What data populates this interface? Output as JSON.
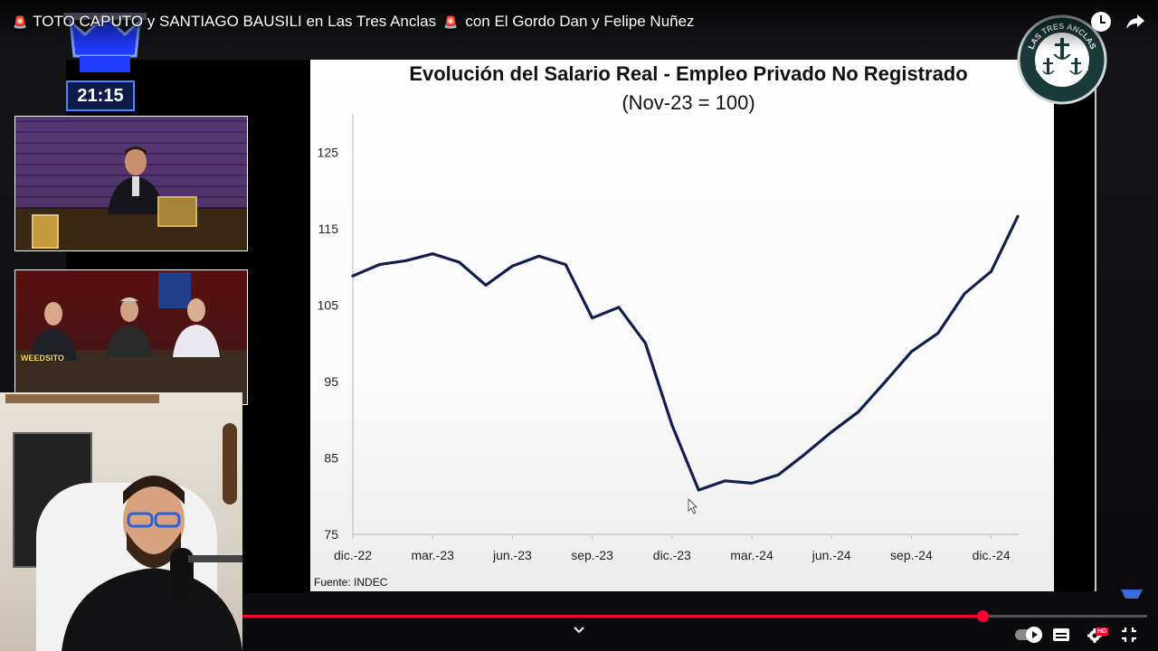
{
  "video": {
    "title_part1": "TOTO CAPUTO y SANTIAGO BAUSILI en Las Tres Anclas",
    "title_part2": "con El Gordo Dan y Felipe Nuñez",
    "siren_glyph": "🚨"
  },
  "overlay": {
    "timer": "21:15",
    "guest_cam_label": "WEEDSITO"
  },
  "channel_logo": {
    "text": "LAS TRES ANCLAS"
  },
  "player": {
    "progress_fraction": 0.818,
    "hd_label": "HD",
    "accent_color": "#ff0033"
  },
  "chart_data": {
    "type": "line",
    "title": "Evolución del Salario Real - Empleo Privado No Registrado",
    "subtitle": "(Nov-23 = 100)",
    "source": "Fuente: INDEC",
    "ylim": [
      75,
      130
    ],
    "yticks": [
      75,
      85,
      95,
      105,
      115,
      125
    ],
    "xtick_labels": [
      "dic.-22",
      "mar.-23",
      "jun.-23",
      "sep.-23",
      "dic.-23",
      "mar.-24",
      "jun.-24",
      "sep.-24",
      "dic.-24"
    ],
    "line_color": "#0f1f4f",
    "grid": false,
    "series": [
      {
        "x": [
          "dic.-22",
          "ene.-23",
          "feb.-23",
          "mar.-23",
          "abr.-23",
          "may.-23",
          "jun.-23",
          "jul.-23",
          "ago.-23",
          "sep.-23",
          "oct.-23",
          "nov.-23",
          "dic.-23",
          "ene.-24",
          "feb.-24",
          "mar.-24",
          "abr.-24",
          "may.-24",
          "jun.-24",
          "jul.-24",
          "ago.-24",
          "sep.-24",
          "oct.-24",
          "nov.-24",
          "dic.-24",
          "ene.-25"
        ],
        "values": [
          108.8,
          110.3,
          110.8,
          111.7,
          110.6,
          107.6,
          110.1,
          111.4,
          110.3,
          103.3,
          104.7,
          100.0,
          89.3,
          80.8,
          82.0,
          81.7,
          82.8,
          85.5,
          88.4,
          91.0,
          94.9,
          98.9,
          101.3,
          106.5,
          109.4,
          116.6
        ]
      }
    ]
  }
}
